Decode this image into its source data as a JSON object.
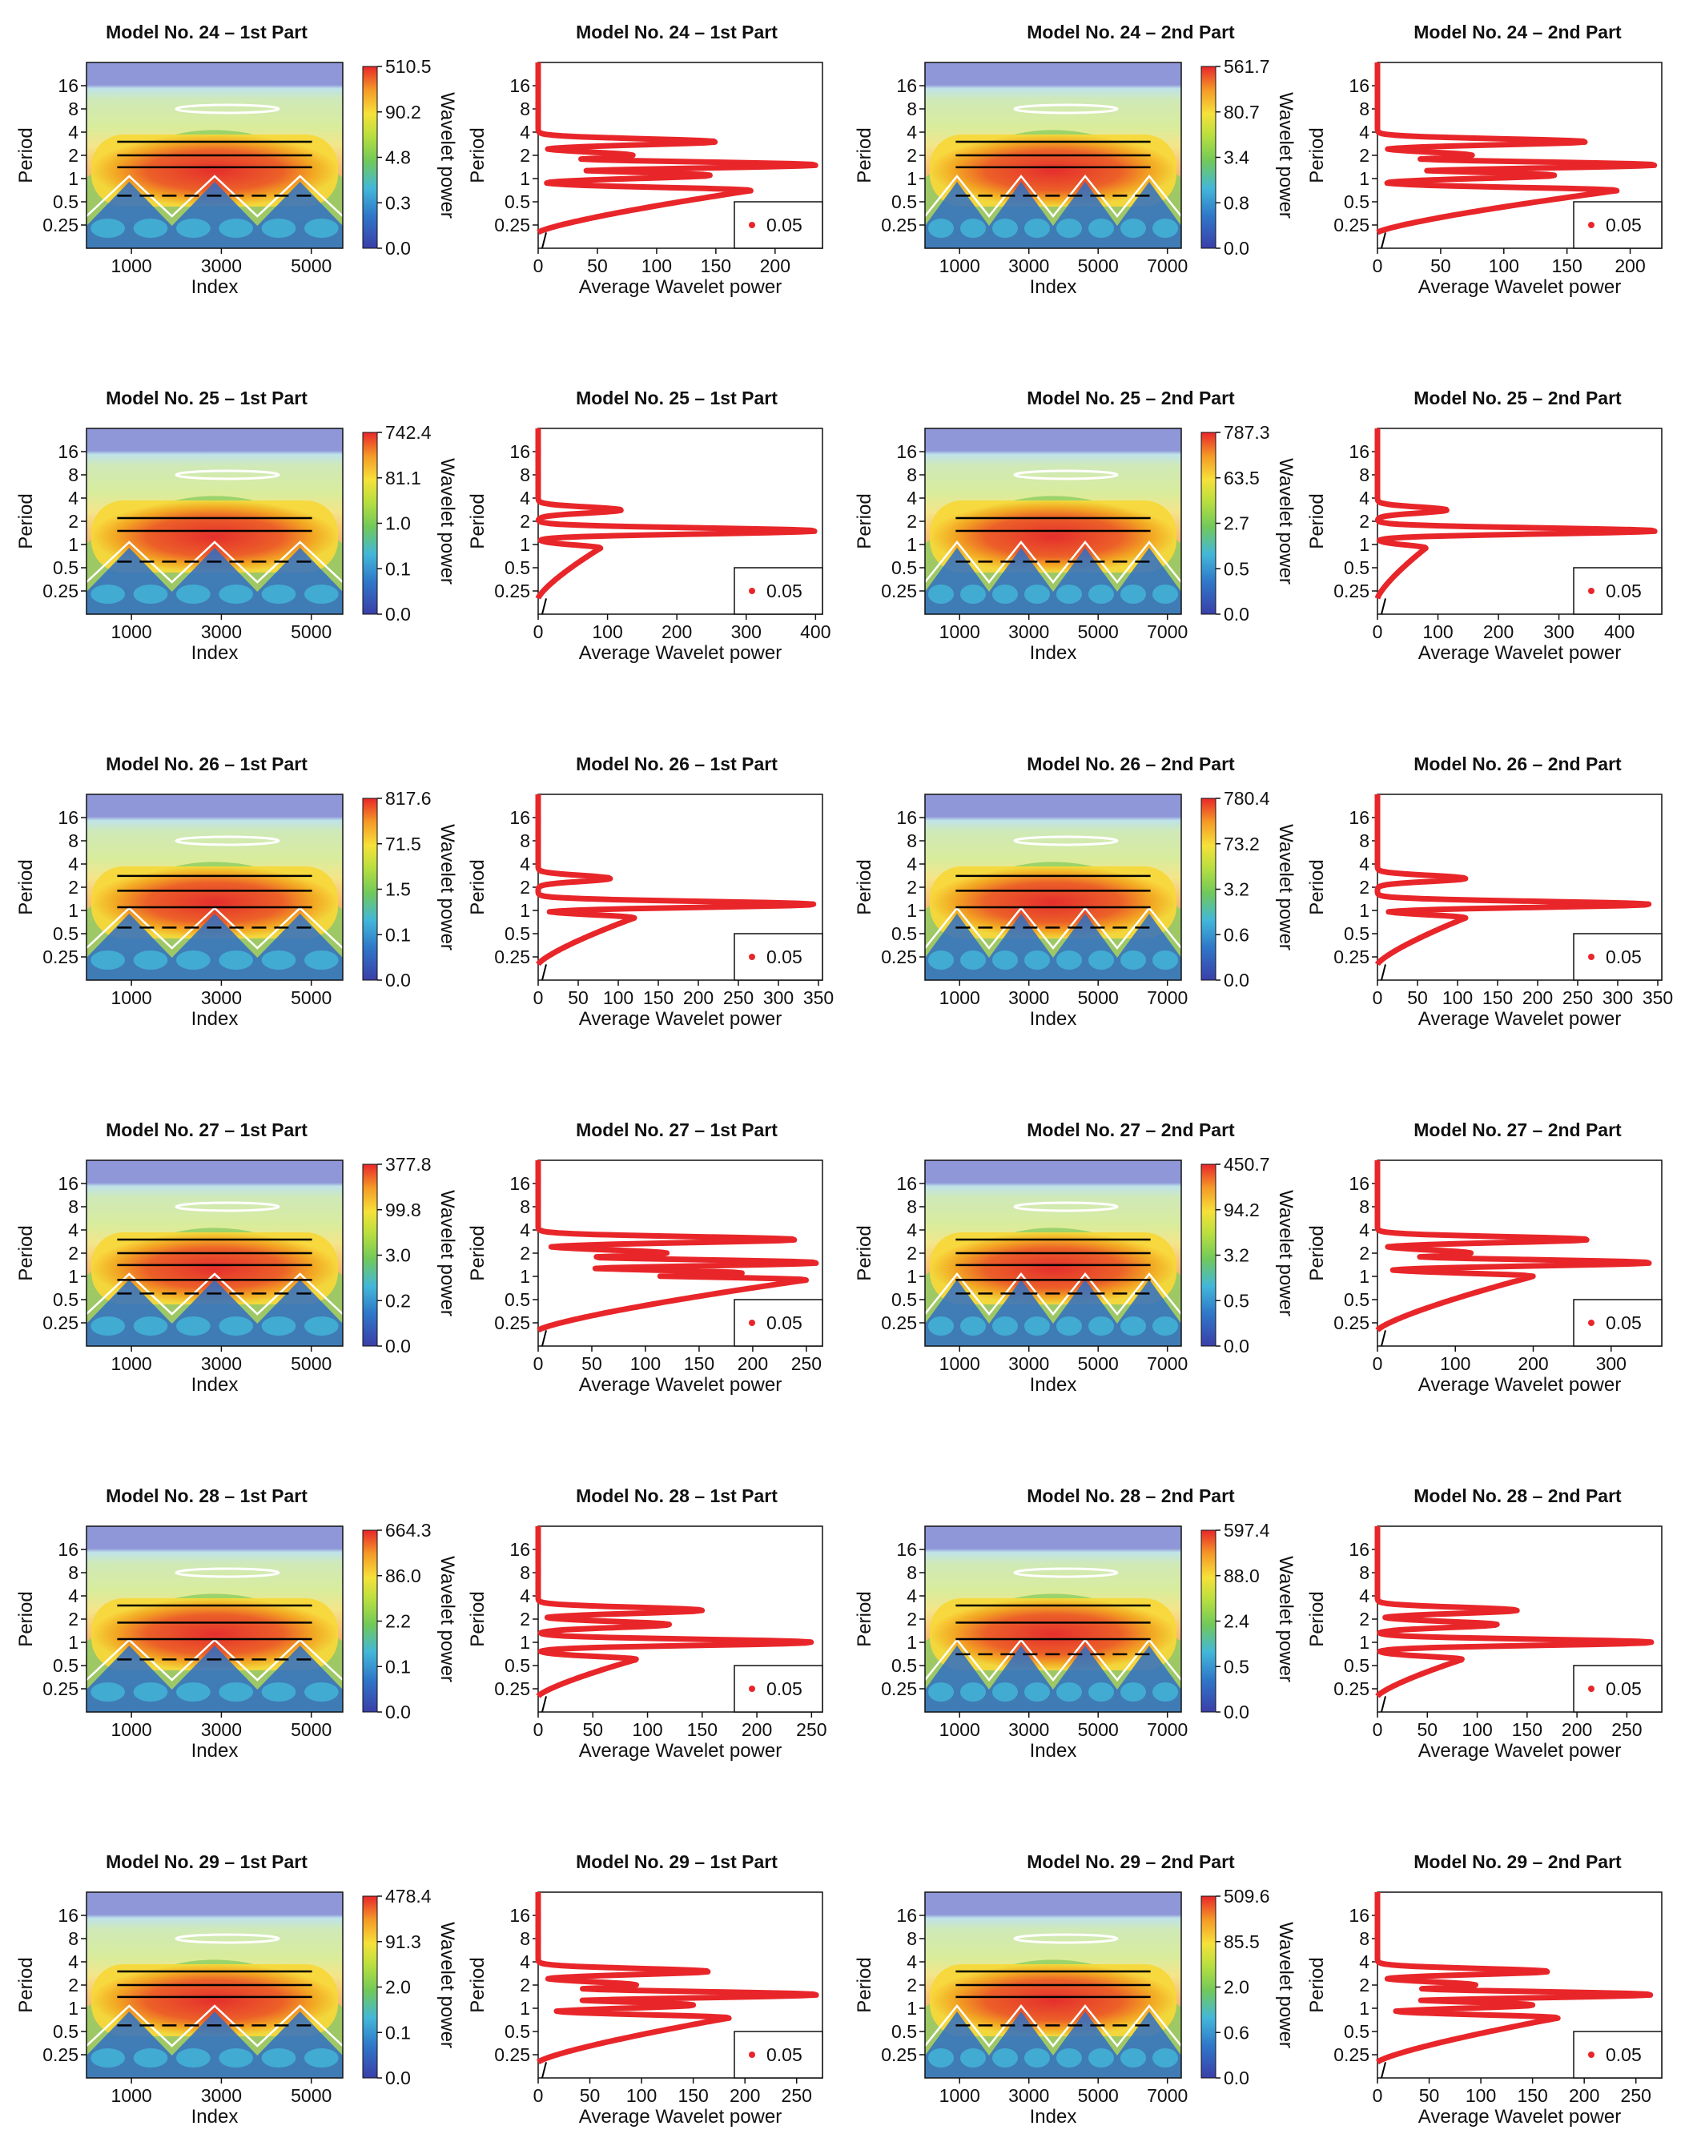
{
  "chart_data": [
    {
      "type": "heatmap",
      "panel": "scalogram",
      "title": "Model No. 24 – 1st Part",
      "xlabel": "Index",
      "ylabel": "Period",
      "xticks": [
        "1000",
        "3000",
        "5000"
      ],
      "yticks": [
        "16",
        "8",
        "4",
        "2",
        "1",
        "0.5",
        "0.25"
      ],
      "colorbar_label": "Wavelet power",
      "colorbar_ticks": [
        "510.5",
        "90.2",
        "4.8",
        "0.3",
        "0.0"
      ],
      "xlim": [
        0,
        5700
      ],
      "ridges": [
        3,
        2,
        1.4,
        0.6
      ],
      "bumps": 3
    },
    {
      "type": "line",
      "panel": "average",
      "title": "Model No. 24 – 1st Part",
      "xlabel": "Average Wavelet power",
      "ylabel": "Period",
      "xticks": [
        "0",
        "50",
        "100",
        "150",
        "200"
      ],
      "xlim": [
        0,
        240
      ],
      "yticks": [
        "16",
        "8",
        "4",
        "2",
        "1",
        "0.5",
        "0.25"
      ],
      "legend": "0.05",
      "peaks": [
        {
          "p": 3,
          "v": 150
        },
        {
          "p": 2,
          "v": 80
        },
        {
          "p": 1.5,
          "v": 235
        },
        {
          "p": 1.1,
          "v": 145
        },
        {
          "p": 0.7,
          "v": 180
        }
      ]
    },
    {
      "type": "heatmap",
      "panel": "scalogram",
      "title": "Model No. 24 – 2nd Part",
      "xlabel": "Index",
      "ylabel": "Period",
      "xticks": [
        "1000",
        "3000",
        "5000",
        "7000"
      ],
      "yticks": [
        "16",
        "8",
        "4",
        "2",
        "1",
        "0.5",
        "0.25"
      ],
      "colorbar_label": "Wavelet power",
      "colorbar_ticks": [
        "561.7",
        "80.7",
        "3.4",
        "0.8",
        "0.0"
      ],
      "xlim": [
        0,
        7400
      ],
      "ridges": [
        3,
        2,
        1.4,
        0.6
      ],
      "bumps": 4
    },
    {
      "type": "line",
      "panel": "average",
      "title": "Model No. 24 – 2nd Part",
      "xlabel": "Average Wavelet power",
      "ylabel": "Period",
      "xticks": [
        "0",
        "50",
        "100",
        "150",
        "200"
      ],
      "xlim": [
        0,
        225
      ],
      "yticks": [
        "16",
        "8",
        "4",
        "2",
        "1",
        "0.5",
        "0.25"
      ],
      "legend": "0.05",
      "peaks": [
        {
          "p": 3,
          "v": 165
        },
        {
          "p": 2,
          "v": 75
        },
        {
          "p": 1.5,
          "v": 220
        },
        {
          "p": 1.1,
          "v": 140
        },
        {
          "p": 0.7,
          "v": 190
        }
      ]
    },
    {
      "type": "heatmap",
      "panel": "scalogram",
      "title": "Model No. 25 – 1st Part",
      "xlabel": "Index",
      "ylabel": "Period",
      "xticks": [
        "1000",
        "3000",
        "5000"
      ],
      "yticks": [
        "16",
        "8",
        "4",
        "2",
        "1",
        "0.5",
        "0.25"
      ],
      "colorbar_label": "Wavelet power",
      "colorbar_ticks": [
        "742.4",
        "81.1",
        "1.0",
        "0.1",
        "0.0"
      ],
      "xlim": [
        0,
        5700
      ],
      "ridges": [
        2.2,
        1.5,
        0.6
      ],
      "bumps": 3
    },
    {
      "type": "line",
      "panel": "average",
      "title": "Model No. 25 – 1st Part",
      "xlabel": "Average Wavelet power",
      "ylabel": "Period",
      "xticks": [
        "0",
        "100",
        "200",
        "300",
        "400"
      ],
      "xlim": [
        0,
        410
      ],
      "yticks": [
        "16",
        "8",
        "4",
        "2",
        "1",
        "0.5",
        "0.25"
      ],
      "legend": "0.05",
      "peaks": [
        {
          "p": 2.8,
          "v": 120
        },
        {
          "p": 1.5,
          "v": 400
        },
        {
          "p": 0.9,
          "v": 90
        }
      ]
    },
    {
      "type": "heatmap",
      "panel": "scalogram",
      "title": "Model No. 25 – 2nd Part",
      "xlabel": "Index",
      "ylabel": "Period",
      "xticks": [
        "1000",
        "3000",
        "5000",
        "7000"
      ],
      "yticks": [
        "16",
        "8",
        "4",
        "2",
        "1",
        "0.5",
        "0.25"
      ],
      "colorbar_label": "Wavelet power",
      "colorbar_ticks": [
        "787.3",
        "63.5",
        "2.7",
        "0.5",
        "0.0"
      ],
      "xlim": [
        0,
        7400
      ],
      "ridges": [
        2.2,
        1.5,
        0.6
      ],
      "bumps": 4
    },
    {
      "type": "line",
      "panel": "average",
      "title": "Model No. 25 – 2nd Part",
      "xlabel": "Average Wavelet power",
      "ylabel": "Period",
      "xticks": [
        "0",
        "100",
        "200",
        "300",
        "400"
      ],
      "xlim": [
        0,
        470
      ],
      "yticks": [
        "16",
        "8",
        "4",
        "2",
        "1",
        "0.5",
        "0.25"
      ],
      "legend": "0.05",
      "peaks": [
        {
          "p": 2.8,
          "v": 115
        },
        {
          "p": 1.5,
          "v": 460
        },
        {
          "p": 0.9,
          "v": 80
        }
      ]
    },
    {
      "type": "heatmap",
      "panel": "scalogram",
      "title": "Model No. 26 – 1st Part",
      "xlabel": "Index",
      "ylabel": "Period",
      "xticks": [
        "1000",
        "3000",
        "5000"
      ],
      "yticks": [
        "16",
        "8",
        "4",
        "2",
        "1",
        "0.5",
        "0.25"
      ],
      "colorbar_label": "Wavelet power",
      "colorbar_ticks": [
        "817.6",
        "71.5",
        "1.5",
        "0.1",
        "0.0"
      ],
      "xlim": [
        0,
        5700
      ],
      "ridges": [
        2.8,
        1.8,
        1.1,
        0.6
      ],
      "bumps": 3
    },
    {
      "type": "line",
      "panel": "average",
      "title": "Model No. 26 – 1st Part",
      "xlabel": "Average Wavelet power",
      "ylabel": "Period",
      "xticks": [
        "0",
        "50",
        "100",
        "150",
        "200",
        "250",
        "300",
        "350"
      ],
      "xlim": [
        0,
        355
      ],
      "yticks": [
        "16",
        "8",
        "4",
        "2",
        "1",
        "0.5",
        "0.25"
      ],
      "legend": "0.05",
      "peaks": [
        {
          "p": 2.6,
          "v": 90
        },
        {
          "p": 1.2,
          "v": 345
        },
        {
          "p": 0.8,
          "v": 120
        }
      ]
    },
    {
      "type": "heatmap",
      "panel": "scalogram",
      "title": "Model No. 26 – 2nd Part",
      "xlabel": "Index",
      "ylabel": "Period",
      "xticks": [
        "1000",
        "3000",
        "5000",
        "7000"
      ],
      "yticks": [
        "16",
        "8",
        "4",
        "2",
        "1",
        "0.5",
        "0.25"
      ],
      "colorbar_label": "Wavelet power",
      "colorbar_ticks": [
        "780.4",
        "73.2",
        "3.2",
        "0.6",
        "0.0"
      ],
      "xlim": [
        0,
        7400
      ],
      "ridges": [
        2.8,
        1.8,
        1.1,
        0.6
      ],
      "bumps": 4
    },
    {
      "type": "line",
      "panel": "average",
      "title": "Model No. 26 – 2nd Part",
      "xlabel": "Average Wavelet power",
      "ylabel": "Period",
      "xticks": [
        "0",
        "50",
        "100",
        "150",
        "200",
        "250",
        "300",
        "350"
      ],
      "xlim": [
        0,
        355
      ],
      "yticks": [
        "16",
        "8",
        "4",
        "2",
        "1",
        "0.5",
        "0.25"
      ],
      "legend": "0.05",
      "peaks": [
        {
          "p": 2.6,
          "v": 110
        },
        {
          "p": 1.2,
          "v": 340
        },
        {
          "p": 0.8,
          "v": 110
        }
      ]
    },
    {
      "type": "heatmap",
      "panel": "scalogram",
      "title": "Model No. 27 – 1st Part",
      "xlabel": "Index",
      "ylabel": "Period",
      "xticks": [
        "1000",
        "3000",
        "5000"
      ],
      "yticks": [
        "16",
        "8",
        "4",
        "2",
        "1",
        "0.5",
        "0.25"
      ],
      "colorbar_label": "Wavelet power",
      "colorbar_ticks": [
        "377.8",
        "99.8",
        "3.0",
        "0.2",
        "0.0"
      ],
      "xlim": [
        0,
        5700
      ],
      "ridges": [
        3,
        2,
        1.4,
        0.9,
        0.6
      ],
      "bumps": 3
    },
    {
      "type": "line",
      "panel": "average",
      "title": "Model No. 27 – 1st Part",
      "xlabel": "Average Wavelet power",
      "ylabel": "Period",
      "xticks": [
        "0",
        "50",
        "100",
        "150",
        "200",
        "250"
      ],
      "xlim": [
        0,
        265
      ],
      "yticks": [
        "16",
        "8",
        "4",
        "2",
        "1",
        "0.5",
        "0.25"
      ],
      "legend": "0.05",
      "peaks": [
        {
          "p": 3,
          "v": 240
        },
        {
          "p": 2,
          "v": 120
        },
        {
          "p": 1.5,
          "v": 260
        },
        {
          "p": 1.1,
          "v": 190
        },
        {
          "p": 0.9,
          "v": 250
        }
      ]
    },
    {
      "type": "heatmap",
      "panel": "scalogram",
      "title": "Model No. 27 – 2nd Part",
      "xlabel": "Index",
      "ylabel": "Period",
      "xticks": [
        "1000",
        "3000",
        "5000",
        "7000"
      ],
      "yticks": [
        "16",
        "8",
        "4",
        "2",
        "1",
        "0.5",
        "0.25"
      ],
      "colorbar_label": "Wavelet power",
      "colorbar_ticks": [
        "450.7",
        "94.2",
        "3.2",
        "0.5",
        "0.0"
      ],
      "xlim": [
        0,
        7400
      ],
      "ridges": [
        3,
        2,
        1.4,
        0.9,
        0.6
      ],
      "bumps": 4
    },
    {
      "type": "line",
      "panel": "average",
      "title": "Model No. 27 – 2nd Part",
      "xlabel": "Average Wavelet power",
      "ylabel": "Period",
      "xticks": [
        "0",
        "100",
        "200",
        "300"
      ],
      "xlim": [
        0,
        365
      ],
      "yticks": [
        "16",
        "8",
        "4",
        "2",
        "1",
        "0.5",
        "0.25"
      ],
      "legend": "0.05",
      "peaks": [
        {
          "p": 3,
          "v": 270
        },
        {
          "p": 2,
          "v": 120
        },
        {
          "p": 1.5,
          "v": 350
        },
        {
          "p": 1.0,
          "v": 200
        }
      ]
    },
    {
      "type": "heatmap",
      "panel": "scalogram",
      "title": "Model No. 28 – 1st Part",
      "xlabel": "Index",
      "ylabel": "Period",
      "xticks": [
        "1000",
        "3000",
        "5000"
      ],
      "yticks": [
        "16",
        "8",
        "4",
        "2",
        "1",
        "0.5",
        "0.25"
      ],
      "colorbar_label": "Wavelet power",
      "colorbar_ticks": [
        "664.3",
        "86.0",
        "2.2",
        "0.1",
        "0.0"
      ],
      "xlim": [
        0,
        5700
      ],
      "ridges": [
        3,
        1.8,
        1.1,
        0.6
      ],
      "bumps": 3
    },
    {
      "type": "line",
      "panel": "average",
      "title": "Model No. 28 – 1st Part",
      "xlabel": "Average Wavelet power",
      "ylabel": "Period",
      "xticks": [
        "0",
        "50",
        "100",
        "150",
        "200",
        "250"
      ],
      "xlim": [
        0,
        260
      ],
      "yticks": [
        "16",
        "8",
        "4",
        "2",
        "1",
        "0.5",
        "0.25"
      ],
      "legend": "0.05",
      "peaks": [
        {
          "p": 2.6,
          "v": 150
        },
        {
          "p": 1.7,
          "v": 120
        },
        {
          "p": 1.0,
          "v": 250
        },
        {
          "p": 0.6,
          "v": 90
        }
      ]
    },
    {
      "type": "heatmap",
      "panel": "scalogram",
      "title": "Model No. 28 – 2nd Part",
      "xlabel": "Index",
      "ylabel": "Period",
      "xticks": [
        "1000",
        "3000",
        "5000",
        "7000"
      ],
      "yticks": [
        "16",
        "8",
        "4",
        "2",
        "1",
        "0.5",
        "0.25"
      ],
      "colorbar_label": "Wavelet power",
      "colorbar_ticks": [
        "597.4",
        "88.0",
        "2.4",
        "0.5",
        "0.0"
      ],
      "xlim": [
        0,
        7400
      ],
      "ridges": [
        3,
        1.8,
        1.1,
        0.7
      ],
      "bumps": 4
    },
    {
      "type": "line",
      "panel": "average",
      "title": "Model No. 28 – 2nd Part",
      "xlabel": "Average Wavelet power",
      "ylabel": "Period",
      "xticks": [
        "0",
        "50",
        "100",
        "150",
        "200",
        "250"
      ],
      "xlim": [
        0,
        285
      ],
      "yticks": [
        "16",
        "8",
        "4",
        "2",
        "1",
        "0.5",
        "0.25"
      ],
      "legend": "0.05",
      "peaks": [
        {
          "p": 2.6,
          "v": 140
        },
        {
          "p": 1.7,
          "v": 120
        },
        {
          "p": 1.0,
          "v": 275
        },
        {
          "p": 0.6,
          "v": 85
        }
      ]
    },
    {
      "type": "heatmap",
      "panel": "scalogram",
      "title": "Model No. 29 – 1st Part",
      "xlabel": "Index",
      "ylabel": "Period",
      "xticks": [
        "1000",
        "3000",
        "5000"
      ],
      "yticks": [
        "16",
        "8",
        "4",
        "2",
        "1",
        "0.5",
        "0.25"
      ],
      "colorbar_label": "Wavelet power",
      "colorbar_ticks": [
        "478.4",
        "91.3",
        "2.0",
        "0.1",
        "0.0"
      ],
      "xlim": [
        0,
        5700
      ],
      "ridges": [
        3,
        2,
        1.4,
        0.6
      ],
      "bumps": 3
    },
    {
      "type": "line",
      "panel": "average",
      "title": "Model No. 29 – 1st Part",
      "xlabel": "Average Wavelet power",
      "ylabel": "Period",
      "xticks": [
        "0",
        "50",
        "100",
        "150",
        "200",
        "250"
      ],
      "xlim": [
        0,
        275
      ],
      "yticks": [
        "16",
        "8",
        "4",
        "2",
        "1",
        "0.5",
        "0.25"
      ],
      "legend": "0.05",
      "peaks": [
        {
          "p": 3,
          "v": 165
        },
        {
          "p": 2,
          "v": 95
        },
        {
          "p": 1.5,
          "v": 270
        },
        {
          "p": 1.1,
          "v": 150
        },
        {
          "p": 0.75,
          "v": 185
        }
      ]
    },
    {
      "type": "heatmap",
      "panel": "scalogram",
      "title": "Model No. 29 – 2nd Part",
      "xlabel": "Index",
      "ylabel": "Period",
      "xticks": [
        "1000",
        "3000",
        "5000",
        "7000"
      ],
      "yticks": [
        "16",
        "8",
        "4",
        "2",
        "1",
        "0.5",
        "0.25"
      ],
      "colorbar_label": "Wavelet power",
      "colorbar_ticks": [
        "509.6",
        "85.5",
        "2.0",
        "0.6",
        "0.0"
      ],
      "xlim": [
        0,
        7400
      ],
      "ridges": [
        3,
        2,
        1.4,
        0.6
      ],
      "bumps": 4
    },
    {
      "type": "line",
      "panel": "average",
      "title": "Model No. 29 – 2nd Part",
      "xlabel": "Average Wavelet power",
      "ylabel": "Period",
      "xticks": [
        "0",
        "50",
        "100",
        "150",
        "200",
        "250"
      ],
      "xlim": [
        0,
        275
      ],
      "yticks": [
        "16",
        "8",
        "4",
        "2",
        "1",
        "0.5",
        "0.25"
      ],
      "legend": "0.05",
      "peaks": [
        {
          "p": 3,
          "v": 165
        },
        {
          "p": 2,
          "v": 95
        },
        {
          "p": 1.5,
          "v": 265
        },
        {
          "p": 1.1,
          "v": 150
        },
        {
          "p": 0.75,
          "v": 175
        }
      ]
    }
  ],
  "colors": {
    "curve": "#e8262a",
    "axis": "#111111",
    "colorbar": [
      "#3a3fa8",
      "#2f78c9",
      "#43b7d9",
      "#71c95a",
      "#b9df3f",
      "#f6e13a",
      "#f59a27",
      "#e8262a"
    ]
  }
}
